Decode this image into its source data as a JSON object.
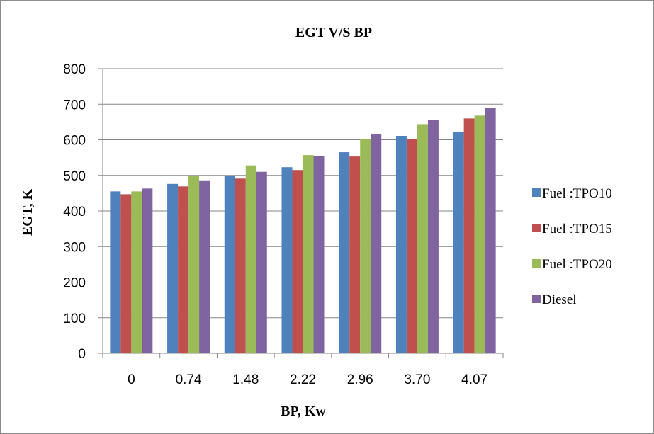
{
  "chart_data": {
    "type": "bar",
    "title": "EGT V/S BP",
    "xlabel": "BP, Kw",
    "ylabel": "EGT, K",
    "categories": [
      "0",
      "0.74",
      "1.48",
      "2.22",
      "2.96",
      "3.70",
      "4.07"
    ],
    "ylim": [
      0,
      800
    ],
    "yticks": [
      "0",
      "100",
      "200",
      "300",
      "400",
      "500",
      "600",
      "700",
      "800"
    ],
    "grid": true,
    "legend_position": "right",
    "series": [
      {
        "name": "Fuel :TPO10",
        "color": "#4f81bd",
        "values": [
          455,
          476,
          498,
          523,
          565,
          611,
          623
        ]
      },
      {
        "name": "Fuel :TPO15",
        "color": "#c0504d",
        "values": [
          447,
          469,
          491,
          515,
          553,
          601,
          660
        ]
      },
      {
        "name": "Fuel :TPO20",
        "color": "#9bbb59",
        "values": [
          455,
          498,
          528,
          557,
          603,
          644,
          668
        ]
      },
      {
        "name": "Diesel",
        "color": "#8064a2",
        "values": [
          463,
          486,
          510,
          555,
          617,
          655,
          690
        ]
      }
    ]
  }
}
